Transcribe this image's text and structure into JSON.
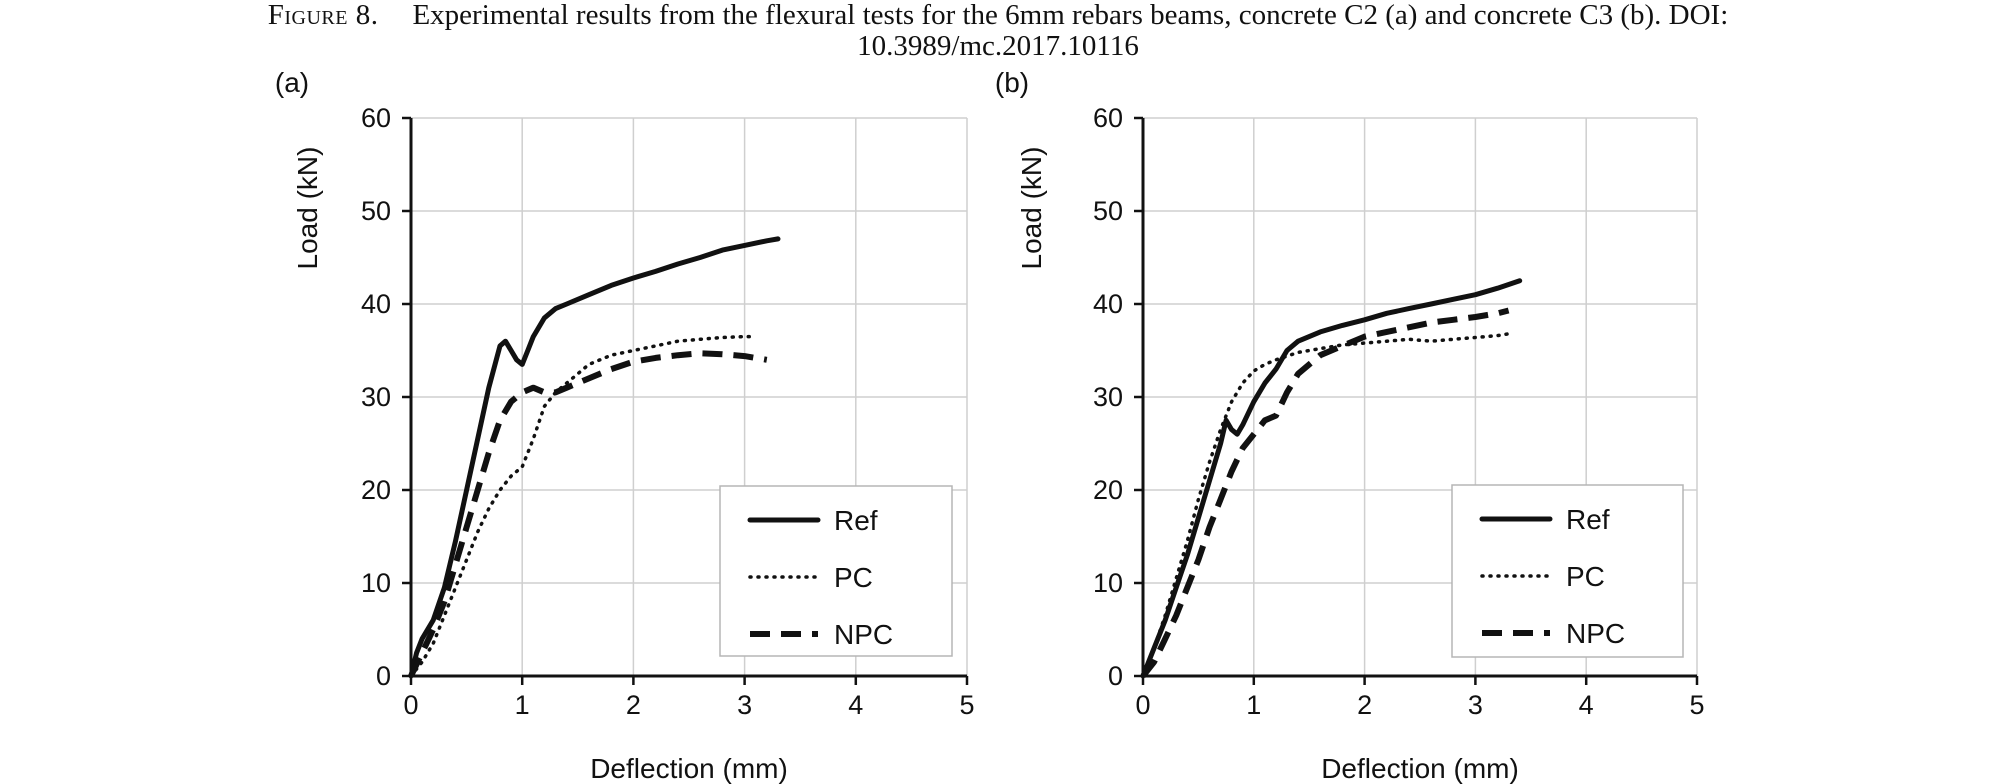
{
  "caption": {
    "label": "Figure 8.",
    "line1": "Experimental results from the flexural tests for the 6mm rebars beams, concrete C2 (a) and concrete C3 (b). DOI:",
    "line2": "10.3989/mc.2017.10116"
  },
  "chart_data": [
    {
      "type": "line",
      "panel_label": "(a)",
      "xlabel": "Deflection (mm)",
      "ylabel": "Load (kN)",
      "xlim": [
        0,
        5
      ],
      "ylim": [
        0,
        60
      ],
      "xticks": [
        0,
        1,
        2,
        3,
        4,
        5
      ],
      "yticks": [
        0,
        10,
        20,
        30,
        40,
        50,
        60
      ],
      "grid": true,
      "legend_position": "bottom-right",
      "series": [
        {
          "name": "Ref",
          "style": "solid",
          "x": [
            0,
            0.05,
            0.1,
            0.2,
            0.3,
            0.4,
            0.5,
            0.6,
            0.7,
            0.8,
            0.85,
            0.9,
            0.95,
            1.0,
            1.05,
            1.1,
            1.2,
            1.3,
            1.4,
            1.6,
            1.8,
            2.0,
            2.2,
            2.4,
            2.6,
            2.8,
            3.0,
            3.2,
            3.3
          ],
          "y": [
            0,
            2.5,
            4.0,
            6.0,
            9.5,
            14.5,
            20.0,
            25.5,
            31.0,
            35.5,
            36.0,
            35.0,
            34.0,
            33.5,
            35.0,
            36.5,
            38.5,
            39.5,
            40.0,
            41.0,
            42.0,
            42.8,
            43.5,
            44.3,
            45.0,
            45.8,
            46.3,
            46.8,
            47.0
          ]
        },
        {
          "name": "PC",
          "style": "dotted",
          "x": [
            0,
            0.1,
            0.2,
            0.3,
            0.4,
            0.5,
            0.6,
            0.7,
            0.8,
            0.9,
            1.0,
            1.1,
            1.2,
            1.3,
            1.4,
            1.5,
            1.6,
            1.8,
            2.0,
            2.2,
            2.4,
            2.6,
            2.8,
            3.0,
            3.1
          ],
          "y": [
            0,
            1.5,
            3.5,
            6.5,
            9.5,
            12.5,
            15.5,
            18.0,
            20.0,
            21.5,
            22.5,
            25.5,
            29.0,
            30.5,
            31.5,
            32.5,
            33.5,
            34.5,
            35.0,
            35.5,
            36.0,
            36.2,
            36.4,
            36.5,
            36.5
          ]
        },
        {
          "name": "NPC",
          "style": "dashed",
          "x": [
            0,
            0.1,
            0.2,
            0.3,
            0.4,
            0.5,
            0.6,
            0.7,
            0.8,
            0.9,
            1.0,
            1.1,
            1.2,
            1.3,
            1.4,
            1.6,
            1.8,
            2.0,
            2.2,
            2.4,
            2.6,
            2.8,
            3.0,
            3.2
          ],
          "y": [
            0,
            2.5,
            5.0,
            8.0,
            12.0,
            16.0,
            20.0,
            24.0,
            27.5,
            29.5,
            30.5,
            31.0,
            30.5,
            30.5,
            31.0,
            32.0,
            33.0,
            33.8,
            34.2,
            34.5,
            34.7,
            34.6,
            34.4,
            34.0
          ]
        }
      ]
    },
    {
      "type": "line",
      "panel_label": "(b)",
      "xlabel": "Deflection (mm)",
      "ylabel": "Load (kN)",
      "xlim": [
        0,
        5
      ],
      "ylim": [
        0,
        60
      ],
      "xticks": [
        0,
        1,
        2,
        3,
        4,
        5
      ],
      "yticks": [
        0,
        10,
        20,
        30,
        40,
        50,
        60
      ],
      "grid": true,
      "legend_position": "bottom-right",
      "series": [
        {
          "name": "Ref",
          "style": "solid",
          "x": [
            0,
            0.1,
            0.2,
            0.3,
            0.4,
            0.5,
            0.6,
            0.7,
            0.75,
            0.8,
            0.85,
            0.9,
            1.0,
            1.1,
            1.2,
            1.3,
            1.4,
            1.6,
            1.8,
            2.0,
            2.2,
            2.4,
            2.6,
            2.8,
            3.0,
            3.2,
            3.4
          ],
          "y": [
            0,
            3.0,
            6.0,
            9.5,
            13.0,
            17.0,
            21.0,
            25.0,
            27.5,
            26.5,
            26.0,
            27.0,
            29.5,
            31.5,
            33.0,
            35.0,
            36.0,
            37.0,
            37.7,
            38.3,
            39.0,
            39.5,
            40.0,
            40.5,
            41.0,
            41.7,
            42.5
          ]
        },
        {
          "name": "PC",
          "style": "dotted",
          "x": [
            0,
            0.1,
            0.2,
            0.3,
            0.4,
            0.5,
            0.6,
            0.7,
            0.8,
            0.9,
            1.0,
            1.1,
            1.2,
            1.4,
            1.6,
            1.8,
            2.0,
            2.2,
            2.4,
            2.6,
            2.8,
            3.0,
            3.2,
            3.3
          ],
          "y": [
            0,
            3.0,
            6.5,
            10.5,
            14.5,
            19.0,
            23.0,
            26.5,
            29.5,
            31.5,
            32.8,
            33.5,
            34.0,
            34.8,
            35.2,
            35.6,
            35.8,
            36.0,
            36.2,
            36.0,
            36.2,
            36.4,
            36.6,
            36.8
          ]
        },
        {
          "name": "NPC",
          "style": "dashed",
          "x": [
            0,
            0.1,
            0.2,
            0.3,
            0.4,
            0.5,
            0.6,
            0.7,
            0.8,
            0.9,
            1.0,
            1.1,
            1.2,
            1.3,
            1.4,
            1.6,
            1.8,
            2.0,
            2.2,
            2.4,
            2.6,
            2.8,
            3.0,
            3.2,
            3.3
          ],
          "y": [
            0,
            1.5,
            4.0,
            6.5,
            9.5,
            12.5,
            16.0,
            19.0,
            22.0,
            24.5,
            26.0,
            27.5,
            28.0,
            30.5,
            32.5,
            34.5,
            35.5,
            36.5,
            37.0,
            37.5,
            38.0,
            38.3,
            38.6,
            39.0,
            39.3
          ]
        }
      ]
    }
  ]
}
